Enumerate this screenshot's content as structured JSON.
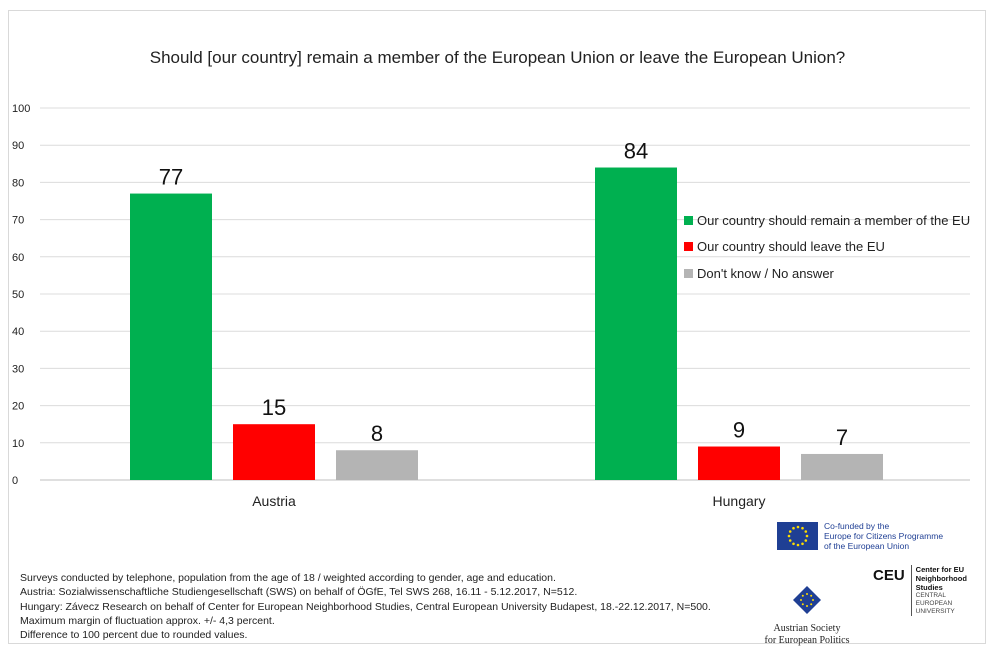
{
  "chart_data": {
    "type": "bar",
    "title": "Should [our country] remain a member of the European Union or leave the European Union?",
    "categories": [
      "Austria",
      "Hungary"
    ],
    "series": [
      {
        "name": "Our country should remain a member of the EU",
        "color": "#00b050",
        "values": [
          77,
          84
        ]
      },
      {
        "name": "Our country should leave the EU",
        "color": "#ff0000",
        "values": [
          15,
          9
        ]
      },
      {
        "name": "Don't know / No answer",
        "color": "#b4b4b4",
        "values": [
          8,
          7
        ]
      }
    ],
    "ylim": [
      0,
      100
    ],
    "yticks": [
      0,
      10,
      20,
      30,
      40,
      50,
      60,
      70,
      80,
      90,
      100
    ],
    "grid": true,
    "legend_position": "right",
    "data_labels": true
  },
  "footer": {
    "lines": [
      "Surveys conducted by telephone, population from the age of 18 / weighted according to gender, age and education.",
      "Austria: Sozialwissenschaftliche Studiengesellschaft (SWS) on behalf of ÖGfE, Tel SWS 268, 16.11 - 5.12.2017, N=512.",
      "Hungary: Závecz Research on behalf of Center for European Neighborhood Studies, Central European University Budapest, 18.-22.12.2017, N=500.",
      "Maximum margin of fluctuation approx. +/- 4,3 percent.",
      "Difference to 100 percent due to rounded values."
    ]
  },
  "logos": {
    "eu": {
      "lines": [
        "Co-funded by the",
        "Europe for Citizens Programme",
        "of the European Union"
      ]
    },
    "asep": {
      "lines": [
        "Austrian Society",
        "for European Politics"
      ]
    },
    "ceu": {
      "mark": "CEU",
      "bold_lines": [
        "Center for EU",
        "Neighborhood",
        "Studies"
      ],
      "small_lines": [
        "CENTRAL",
        "EUROPEAN",
        "UNIVERSITY"
      ]
    }
  }
}
